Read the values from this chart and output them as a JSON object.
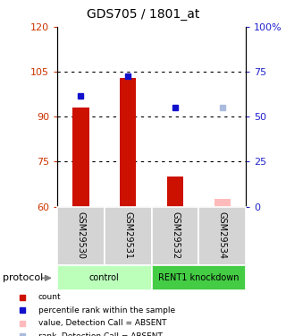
{
  "title": "GDS705 / 1801_at",
  "samples": [
    "GSM29530",
    "GSM29531",
    "GSM29532",
    "GSM29534"
  ],
  "bar_values": [
    93,
    103,
    70,
    null
  ],
  "bar_colors": [
    "#cc1100",
    "#cc1100",
    "#cc1100",
    null
  ],
  "absent_bar_values": [
    null,
    null,
    null,
    62.5
  ],
  "absent_bar_color": "#ffbbbb",
  "rank_values_left": [
    97,
    103.5,
    93,
    null
  ],
  "rank_colors": [
    "#1111cc",
    "#1111cc",
    "#1111cc",
    null
  ],
  "absent_rank_values_left": [
    null,
    null,
    null,
    93
  ],
  "absent_rank_color": "#aabbdd",
  "ylim_left": [
    60,
    120
  ],
  "ylim_right": [
    0,
    100
  ],
  "yticks_left": [
    60,
    75,
    90,
    105,
    120
  ],
  "yticks_right": [
    0,
    25,
    50,
    75,
    100
  ],
  "ytick_labels_right": [
    "0",
    "25",
    "50",
    "75",
    "100%"
  ],
  "groups": [
    {
      "label": "control",
      "span": [
        0,
        0.5
      ],
      "color": "#bbffbb"
    },
    {
      "label": "RENT1 knockdown",
      "span": [
        0.5,
        1.0
      ],
      "color": "#44cc44"
    }
  ],
  "protocol_label": "protocol",
  "legend_items": [
    {
      "label": "count",
      "color": "#cc1100"
    },
    {
      "label": "percentile rank within the sample",
      "color": "#1111cc"
    },
    {
      "label": "value, Detection Call = ABSENT",
      "color": "#ffbbbb"
    },
    {
      "label": "rank, Detection Call = ABSENT",
      "color": "#aabbdd"
    }
  ],
  "bar_width": 0.35,
  "rank_marker_size": 5,
  "background_color": "#ffffff"
}
